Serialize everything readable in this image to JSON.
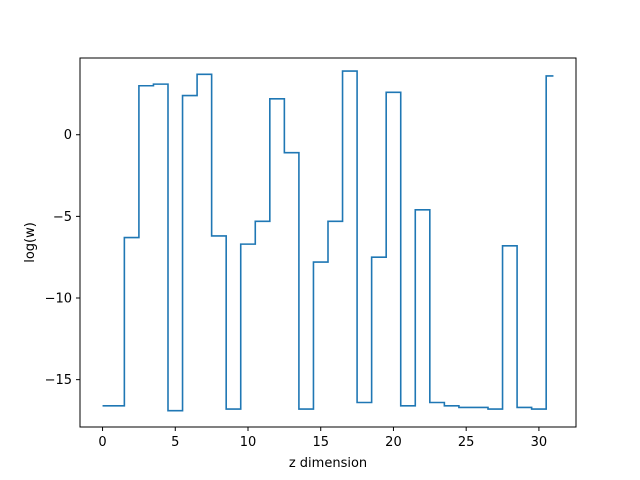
{
  "chart_data": {
    "type": "line",
    "drawstyle": "steps-mid",
    "title": "",
    "xlabel": "z dimension",
    "ylabel": "log(w)",
    "xlim": [
      -1.55,
      32.55
    ],
    "ylim": [
      -17.9,
      4.7
    ],
    "xticks": [
      0,
      5,
      10,
      15,
      20,
      25,
      30
    ],
    "xtick_labels": [
      "0",
      "5",
      "10",
      "15",
      "20",
      "25",
      "30"
    ],
    "yticks": [
      -15,
      -10,
      -5,
      0
    ],
    "ytick_labels": [
      "−15",
      "−10",
      "−5",
      "0"
    ],
    "grid": false,
    "line_color": "#1f77b4",
    "x": [
      0,
      1,
      2,
      3,
      4,
      5,
      6,
      7,
      8,
      9,
      10,
      11,
      12,
      13,
      14,
      15,
      16,
      17,
      18,
      19,
      20,
      21,
      22,
      23,
      24,
      25,
      26,
      27,
      28,
      29,
      30,
      31
    ],
    "y": [
      -16.6,
      -16.6,
      -6.3,
      3.0,
      3.1,
      -16.9,
      2.4,
      3.7,
      -6.2,
      -16.8,
      -6.7,
      -5.3,
      2.2,
      -1.1,
      -16.8,
      -7.8,
      -5.3,
      3.9,
      -16.4,
      -7.5,
      2.6,
      -16.6,
      -4.6,
      -16.4,
      -16.6,
      -16.7,
      -16.7,
      -16.8,
      -6.8,
      -16.7,
      -16.8,
      3.6
    ]
  }
}
